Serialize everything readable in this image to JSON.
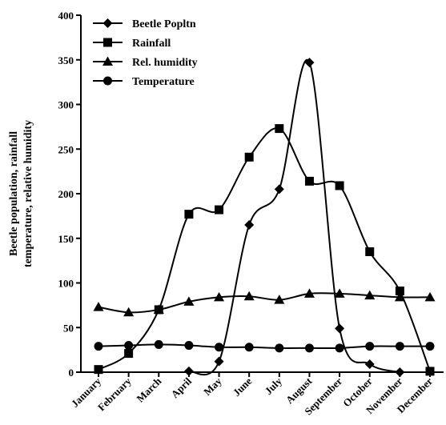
{
  "chart_data": {
    "type": "line",
    "categories": [
      "January",
      "February",
      "March",
      "April",
      "May",
      "June",
      "July",
      "August",
      "September",
      "October",
      "November",
      "December"
    ],
    "ylabel_lines": [
      "Beetle population, rainfall",
      "temperature, relative humidity"
    ],
    "ylim": [
      0,
      400
    ],
    "yticks": [
      "0",
      "50",
      "100",
      "150",
      "200",
      "250",
      "300",
      "350",
      "400"
    ],
    "legend_position": "top-left",
    "series": [
      {
        "name": "Beetle Popltn",
        "marker": "diamond",
        "x": [
          "April",
          "May",
          "June",
          "July",
          "August",
          "September",
          "October",
          "November"
        ],
        "values": [
          1,
          12,
          165,
          205,
          347,
          49,
          9,
          0
        ]
      },
      {
        "name": "Rainfall",
        "marker": "square",
        "x": [
          "January",
          "February",
          "March",
          "April",
          "May",
          "June",
          "July",
          "August",
          "September",
          "October",
          "November",
          "December"
        ],
        "values": [
          3,
          21,
          70,
          177,
          182,
          241,
          273,
          214,
          209,
          135,
          91,
          1
        ]
      },
      {
        "name": "Rel. humidity",
        "marker": "triangle",
        "x": [
          "January",
          "February",
          "March",
          "April",
          "May",
          "June",
          "July",
          "August",
          "September",
          "October",
          "November",
          "December"
        ],
        "values": [
          73,
          67,
          70,
          79,
          84,
          85,
          81,
          88,
          88,
          86,
          84,
          84
        ]
      },
      {
        "name": "Temperature",
        "marker": "circle",
        "x": [
          "January",
          "February",
          "March",
          "April",
          "May",
          "June",
          "July",
          "August",
          "September",
          "October",
          "November",
          "December"
        ],
        "values": [
          29,
          30,
          31,
          30,
          28,
          28,
          27,
          27,
          27,
          29,
          29,
          29
        ]
      }
    ],
    "colors": {
      "line": "#000000",
      "marker": "#000000"
    }
  }
}
